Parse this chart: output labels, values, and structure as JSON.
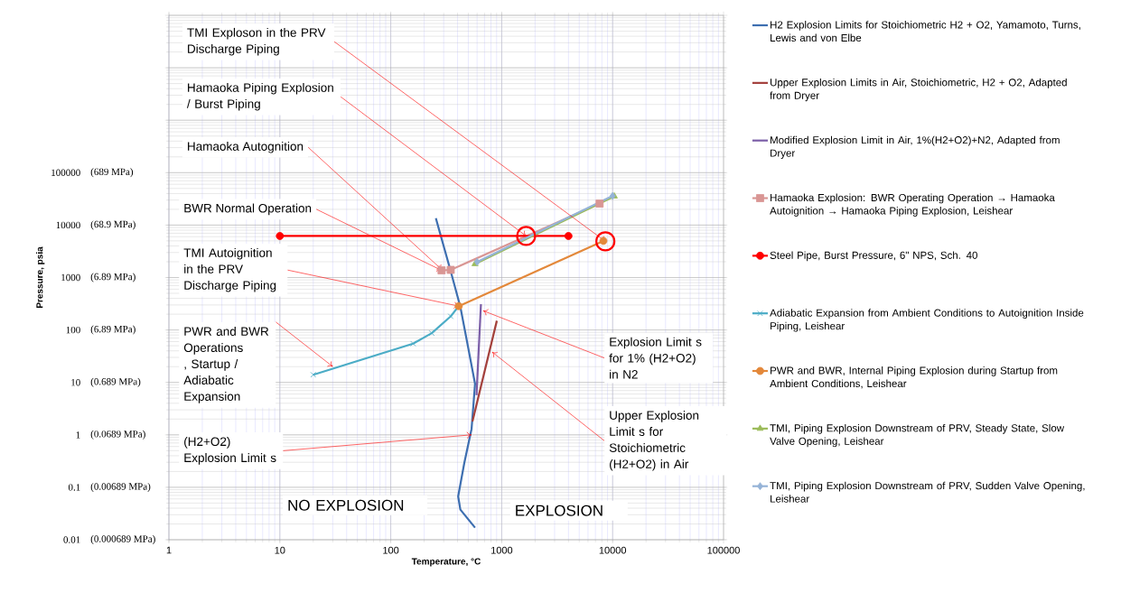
{
  "chart_data": {
    "type": "line",
    "xlabel": "Temperature, °C",
    "ylabel": "Pressure, psia",
    "log": "xy",
    "grid": true,
    "legend": "right",
    "xlim": [
      1,
      100000
    ],
    "ylim": [
      0.01,
      100000000
    ],
    "xticks": [
      1,
      10,
      100,
      1000,
      10000,
      100000
    ],
    "yticks": [
      0.01,
      0.1,
      1,
      10,
      100,
      1000,
      10000,
      100000,
      {
        "value": 1000000,
        "label": null
      },
      {
        "value": 10000000,
        "label": null
      },
      {
        "value": 100000000,
        "label": null
      }
    ],
    "series": [
      {
        "name": "H2 Explosion Limits for Stoichiometric  H2 + O2, Yamamoto, Turns, Lewis and von Elbe",
        "color": "#3d6eb0",
        "marker": "none",
        "x": [
          255,
          347,
          424,
          496,
          575,
          535,
          460,
          405,
          424,
          575
        ],
        "values": [
          13500,
          1320,
          275,
          49,
          9.4,
          1.3,
          0.29,
          0.067,
          0.0375,
          0.017
        ]
      },
      {
        "name": "Upper Explosion Limits in Air, Stoichiometric, H2 + O2, Adapted from Dryer",
        "color": "#a3403c",
        "marker": "none",
        "x": [
          545,
          904
        ],
        "values": [
          1.8,
          150
        ]
      },
      {
        "name": "Modified Explosion Limit in Air, 1%(H2+O2)+N2, Adapted from Dryer",
        "color": "#7b5ea7",
        "marker": "none",
        "x": [
          593,
          650
        ],
        "values": [
          5.7,
          310
        ]
      },
      {
        "name": "Hamaoka Explosion: BWR Operating Operation → Hamaoka Autoignition → Hamaoka Piping Explosion, Leishear",
        "color": "#d99694",
        "marker": "square",
        "x": [
          287,
          347,
          7630
        ],
        "values": [
          1370,
          1400,
          25700
        ]
      },
      {
        "name": "Steel Pipe, Burst Pressure, 6\" NPS, Sch. 40",
        "color": "#ff0000",
        "marker": "circle",
        "x": [
          10,
          4000
        ],
        "values": [
          6200,
          6200
        ]
      },
      {
        "name": "Adiabatic Expansion from Ambient Conditions to Autoignition Inside Piping, Leishear",
        "color": "#4bacc6",
        "marker": "cross",
        "x": [
          20,
          159,
          234,
          347,
          410
        ],
        "values": [
          14,
          55,
          87,
          182,
          285
        ]
      },
      {
        "name": "PWR and BWR, Internal Piping Explosion during Startup from Ambient Conditions, Leishear",
        "color": "#e3883a",
        "marker": "circle",
        "x": [
          410,
          8260
        ],
        "values": [
          285,
          5000
        ]
      },
      {
        "name": "TMI, Piping Explosion Downstream of PRV, Steady State, Slow Valve Opening, Leishear",
        "color": "#9bbb59",
        "marker": "triangle",
        "x": [
          575,
          10350
        ],
        "values": [
          1820,
          35500
        ]
      },
      {
        "name": "TMI, Piping Explosion Downstream of PRV, Sudden Valve Opening, Leishear",
        "color": "#95b3d7",
        "marker": "diamond",
        "x": [
          600,
          10000
        ],
        "values": [
          1990,
          36000
        ]
      }
    ],
    "annotations": [
      {
        "text": "TMI Exploson in the PRV Discharge Piping",
        "x": 8600,
        "y": 4900
      },
      {
        "text": "Hamaoka Piping Explosion / Burst Piping",
        "x": 1660,
        "y": 6200
      },
      {
        "text": "Hamaoka Autognition",
        "x": 290,
        "y": 1400
      },
      {
        "text": "BWR Normal Operation",
        "x": 287,
        "y": 1370
      },
      {
        "text": "TMI Autoignition in the PRV Discharge Piping",
        "x": 410,
        "y": 285
      },
      {
        "text": "PWR and BWR Operations , Startup / Adiabatic Expansion",
        "x": 30,
        "y": 20
      },
      {
        "text": "(H2+O2) Explosion Limit s",
        "x": 535,
        "y": 1
      },
      {
        "text": "Explosion Limit s for 1% (H2+O2) in N2",
        "x": 680,
        "y": 233
      },
      {
        "text": "Upper Explosion Limit s for Stoichiometric (H2+O2) in Air",
        "x": 820,
        "y": 38
      },
      "NO EXPLOSION",
      "EXPLOSION",
      "(0.000689 MPa)",
      "(0.00689 MPa)",
      "(0.0689 MPa)",
      "(0.689 MPa)",
      "(6.89 MPa)",
      "(6.89 MPa)",
      "(68.9 MPa)",
      "(689 MPa)"
    ]
  }
}
